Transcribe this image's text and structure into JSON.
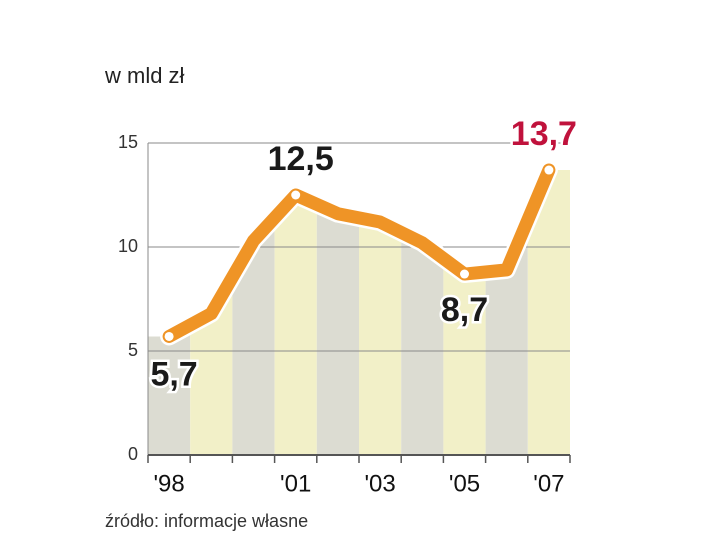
{
  "chart_data": {
    "type": "line",
    "unit_label": "w mld zł",
    "source": "źródło: informacje własne",
    "categories": [
      "'98",
      null,
      null,
      "'01",
      null,
      "'03",
      null,
      "'05",
      null,
      "'07"
    ],
    "values": [
      5.7,
      6.8,
      10.3,
      12.5,
      11.6,
      11.2,
      10.2,
      8.7,
      8.9,
      13.7
    ],
    "value_labels": [
      "5,7",
      null,
      null,
      "12,5",
      null,
      null,
      null,
      "8,7",
      null,
      "13,7"
    ],
    "color": "#ef9426",
    "label_color": "#1a1a1a",
    "last_label_color": "#c0123c",
    "band_colors": [
      "#dcdcd2",
      "#f2f0c8"
    ],
    "ylim": [
      0,
      15
    ],
    "yticks": [
      0,
      5,
      10,
      15
    ],
    "grid": true
  }
}
